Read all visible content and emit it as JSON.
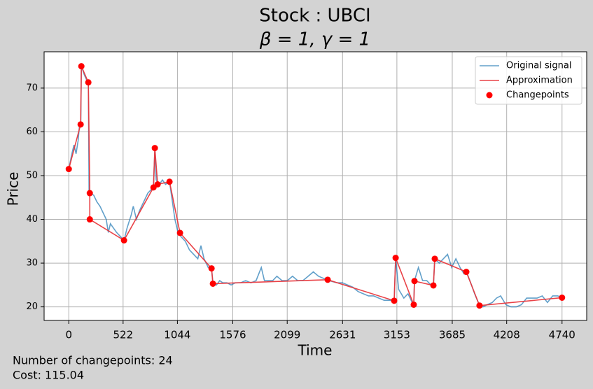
{
  "chart_data": {
    "type": "line",
    "title": "Stock : UBCI",
    "subtitle": "β = 1, γ = 1",
    "x_label": "Time",
    "y_label": "Price",
    "xlim": [
      -237,
      4977
    ],
    "ylim": [
      16.9,
      78.3
    ],
    "xticks": [
      0,
      522,
      1044,
      1576,
      2099,
      2631,
      3153,
      3685,
      4208,
      4740
    ],
    "yticks": [
      20,
      30,
      40,
      50,
      60,
      70
    ],
    "grid": true,
    "legend": "upper right",
    "annotations": [
      "Number of changepoints: 24",
      "Cost: 115.04"
    ],
    "series": [
      {
        "name": "Original signal",
        "color": "#1f77b4",
        "mark": "line",
        "x": [
          0,
          30,
          50,
          70,
          90,
          105,
          115,
          121,
          150,
          188,
          195,
          210,
          240,
          270,
          300,
          330,
          360,
          380,
          400,
          430,
          460,
          500,
          531,
          560,
          600,
          620,
          650,
          680,
          720,
          760,
          800,
          814,
          827,
          840,
          870,
          900,
          930,
          968,
          990,
          1020,
          1050,
          1080,
          1120,
          1160,
          1200,
          1240,
          1270,
          1300,
          1340,
          1372,
          1385,
          1420,
          1450,
          1480,
          1520,
          1560,
          1600,
          1650,
          1700,
          1750,
          1800,
          1850,
          1880,
          1920,
          1960,
          2000,
          2050,
          2100,
          2150,
          2200,
          2250,
          2300,
          2350,
          2400,
          2450,
          2488,
          2530,
          2580,
          2630,
          2680,
          2730,
          2780,
          2830,
          2880,
          2930,
          2980,
          3030,
          3080,
          3127,
          3141,
          3170,
          3220,
          3260,
          3300,
          3315,
          3322,
          3360,
          3400,
          3440,
          3480,
          3504,
          3517,
          3560,
          3600,
          3640,
          3680,
          3720,
          3760,
          3800,
          3830,
          3870,
          3900,
          3947,
          3980,
          4020,
          4070,
          4110,
          4150,
          4200,
          4250,
          4300,
          4350,
          4400,
          4450,
          4500,
          4550,
          4600,
          4650,
          4700,
          4740
        ],
        "values": [
          51.5,
          55,
          57,
          55,
          58,
          62,
          61,
          75,
          73,
          71,
          46,
          46,
          45.5,
          44,
          43,
          41.5,
          40,
          37,
          39,
          38,
          37,
          36,
          35.2,
          38,
          41,
          43,
          40,
          42,
          44,
          46,
          47,
          47.5,
          56,
          49,
          48,
          49,
          48,
          48.6,
          45,
          40,
          37,
          36,
          35,
          33,
          32,
          31,
          34,
          31,
          29,
          28.8,
          25.5,
          25,
          26,
          25.5,
          25.5,
          25,
          25.5,
          25.5,
          26,
          25.5,
          26,
          29,
          26,
          26,
          26,
          27,
          26,
          26,
          27,
          26,
          26,
          27,
          28,
          27,
          26.5,
          26.2,
          25.8,
          25.5,
          25.5,
          25,
          24.5,
          23.5,
          23,
          22.5,
          22.5,
          22,
          21.5,
          21.5,
          21.4,
          31.2,
          24,
          22,
          23,
          21,
          20.5,
          26,
          29,
          26,
          26,
          25,
          24.9,
          31,
          30,
          31,
          32,
          29,
          31,
          29,
          27.5,
          27.5,
          25,
          23,
          20.3,
          20,
          20.5,
          21,
          22,
          22.5,
          20.5,
          20,
          20,
          20.5,
          22,
          22,
          22,
          22.5,
          21,
          22.5,
          22.5,
          22.1
        ]
      },
      {
        "name": "Approximation",
        "color": "#e8383d",
        "mark": "line",
        "x": [
          0,
          114,
          121,
          188,
          202,
          202,
          531,
          814,
          827,
          854,
          968,
          1069,
          1372,
          1385,
          2488,
          3127,
          3141,
          3315,
          3322,
          3504,
          3517,
          3820,
          3947,
          4740
        ],
        "values": [
          51.5,
          61.7,
          75.0,
          71.3,
          46.0,
          40.0,
          35.2,
          47.3,
          56.3,
          48.0,
          48.6,
          36.9,
          28.8,
          25.3,
          26.2,
          21.4,
          31.2,
          20.5,
          25.9,
          24.9,
          31.0,
          28.0,
          20.3,
          22.1
        ]
      },
      {
        "name": "Changepoints",
        "color": "#ff0000",
        "mark": "scatter",
        "x": [
          0,
          114,
          121,
          188,
          202,
          202,
          531,
          814,
          827,
          854,
          968,
          1069,
          1372,
          1385,
          2488,
          3127,
          3141,
          3315,
          3322,
          3504,
          3517,
          3820,
          3947,
          4740
        ],
        "values": [
          51.5,
          61.7,
          75.0,
          71.3,
          46.0,
          40.0,
          35.2,
          47.3,
          56.3,
          48.0,
          48.6,
          36.9,
          28.8,
          25.3,
          26.2,
          21.4,
          31.2,
          20.5,
          25.9,
          24.9,
          31.0,
          28.0,
          20.3,
          22.1
        ]
      }
    ]
  }
}
